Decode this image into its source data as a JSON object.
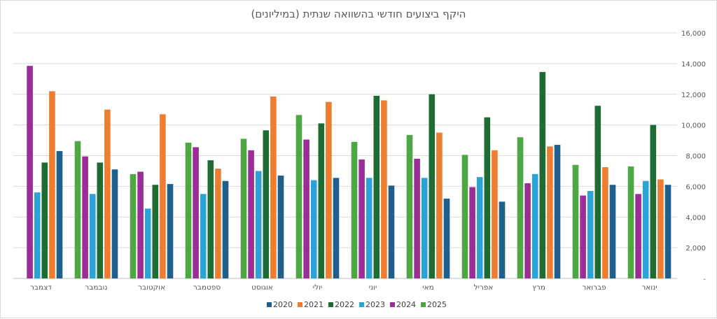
{
  "chart_data": {
    "type": "bar",
    "title": "היקף ביצועים חודשי בהשוואה שנתית  (במיליונים)",
    "ylim": [
      0,
      16000
    ],
    "yticks": [
      0,
      2000,
      4000,
      6000,
      8000,
      10000,
      12000,
      14000,
      16000
    ],
    "ytick_labels": [
      "-",
      "2,000",
      "4,000",
      "6,000",
      "8,000",
      "10,000",
      "12,000",
      "14,000",
      "16,000"
    ],
    "y_axis_side": "right",
    "grid": true,
    "legend_position": "bottom",
    "categories": [
      "ינואר",
      "פברואר",
      "מרץ",
      "אפריל",
      "מאי",
      "יוני",
      "יולי",
      "אוגוסט",
      "ספטמבר",
      "אוקטובר",
      "נובמבר",
      "דצמבר"
    ],
    "series": [
      {
        "name": "2020",
        "color": "#1f5f8b",
        "values": [
          6100,
          6100,
          8700,
          5000,
          5200,
          6050,
          6550,
          6700,
          6350,
          6150,
          7100,
          8300
        ]
      },
      {
        "name": "2021",
        "color": "#ed7d31",
        "values": [
          6450,
          7250,
          8600,
          8350,
          9500,
          11600,
          11500,
          11850,
          7150,
          10700,
          11000,
          12200
        ]
      },
      {
        "name": "2022",
        "color": "#1e6b34",
        "values": [
          10000,
          11250,
          13450,
          10500,
          12000,
          11900,
          10100,
          9650,
          7700,
          6100,
          7550,
          7550
        ]
      },
      {
        "name": "2023",
        "color": "#2ba3d6",
        "values": [
          6350,
          5700,
          6800,
          6600,
          6550,
          6550,
          6400,
          7000,
          5500,
          4550,
          5500,
          5600
        ]
      },
      {
        "name": "2024",
        "color": "#9b2d96",
        "values": [
          5500,
          5400,
          6200,
          5950,
          7800,
          7750,
          9050,
          8350,
          8550,
          6950,
          7950,
          13850
        ]
      },
      {
        "name": "2025",
        "color": "#4ea742",
        "values": [
          7300,
          7400,
          9200,
          8050,
          9350,
          8900,
          10650,
          9100,
          8850,
          6800,
          8950,
          null
        ]
      }
    ]
  }
}
